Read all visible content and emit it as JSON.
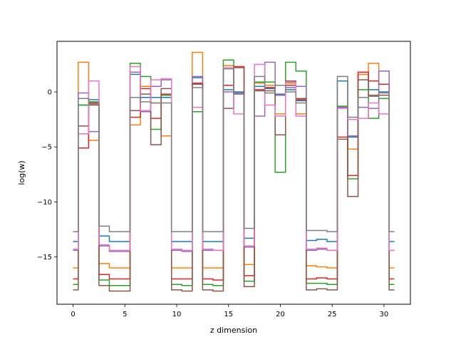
{
  "chart_data": {
    "type": "line",
    "style": "step",
    "title": "",
    "xlabel": "z dimension",
    "ylabel": "log(w)",
    "xlim": [
      -1.55,
      32.55
    ],
    "ylim": [
      -19.3,
      4.6
    ],
    "xticks": [
      0,
      5,
      10,
      15,
      20,
      25,
      30
    ],
    "yticks": [
      -15,
      -10,
      -5,
      0
    ],
    "grid": false,
    "legend": "none",
    "x": [
      0,
      1,
      2,
      3,
      4,
      5,
      6,
      7,
      8,
      9,
      10,
      11,
      12,
      13,
      14,
      15,
      16,
      17,
      18,
      19,
      20,
      21,
      22,
      23,
      24,
      25,
      26,
      27,
      28,
      29,
      30,
      31
    ],
    "series": [
      {
        "color": "#1f77b4",
        "values": [
          -13.6,
          -1.2,
          -0.7,
          -13.1,
          -13.6,
          -13.6,
          1.6,
          -0.5,
          -0.5,
          -0.5,
          -13.6,
          -13.6,
          1.3,
          -13.6,
          -13.6,
          0.2,
          0.0,
          -13.3,
          0.5,
          0.3,
          -0.2,
          0.2,
          -0.8,
          -13.5,
          -13.4,
          -13.6,
          1.0,
          -4.1,
          1.6,
          0.2,
          0.0,
          -13.6
        ]
      },
      {
        "color": "#ff7f0e",
        "values": [
          -16.0,
          2.7,
          -4.4,
          -15.6,
          -16.0,
          -16.0,
          -3.0,
          0.5,
          -1.0,
          -4.0,
          -16.0,
          -16.0,
          3.6,
          -16.0,
          -16.0,
          2.4,
          -0.2,
          -15.7,
          0.8,
          0.6,
          -2.0,
          0.8,
          -2.0,
          -15.8,
          -15.9,
          -16.0,
          -1.3,
          -5.2,
          1.6,
          2.6,
          0.7,
          -16.0
        ]
      },
      {
        "color": "#2ca02c",
        "values": [
          -17.5,
          -1.2,
          -0.9,
          -17.1,
          -17.6,
          -17.6,
          2.6,
          1.4,
          -3.4,
          -0.3,
          -17.5,
          -17.6,
          -1.8,
          -17.5,
          -17.6,
          2.9,
          -0.1,
          -17.2,
          0.9,
          0.9,
          -7.3,
          2.7,
          1.9,
          -17.4,
          -17.4,
          -17.5,
          -1.3,
          -7.9,
          0.2,
          -2.4,
          -0.6,
          -17.5
        ]
      },
      {
        "color": "#d62728",
        "values": [
          -17.0,
          -5.1,
          -1.0,
          -16.6,
          -17.0,
          -17.0,
          -2.3,
          0.3,
          -2.4,
          -0.2,
          -17.0,
          -17.0,
          0.8,
          -17.0,
          -17.1,
          0.6,
          2.3,
          -16.7,
          0.2,
          0.4,
          -0.3,
          0.6,
          -0.7,
          -17.0,
          -16.9,
          -17.0,
          -4.1,
          -7.6,
          1.8,
          1.0,
          0.7,
          -17.0
        ]
      },
      {
        "color": "#9467bd",
        "values": [
          -14.4,
          -0.1,
          -3.6,
          -14.0,
          -14.5,
          -14.5,
          1.8,
          -1.8,
          0.5,
          1.1,
          -14.4,
          -14.5,
          1.4,
          -14.4,
          -14.4,
          0.0,
          -0.1,
          -14.1,
          -2.2,
          2.7,
          -0.3,
          0.4,
          0.5,
          -14.4,
          -14.3,
          -14.4,
          -1.4,
          -4.0,
          -1.4,
          -1.5,
          1.9,
          -14.4
        ]
      },
      {
        "color": "#8c564b",
        "values": [
          -18.0,
          -3.1,
          -1.2,
          -17.6,
          -18.1,
          -18.1,
          -1.7,
          -0.2,
          -4.8,
          0.3,
          -18.0,
          -18.1,
          0.7,
          -18.0,
          -18.1,
          -1.5,
          2.2,
          -17.7,
          0.1,
          0.1,
          -3.9,
          1.0,
          -0.6,
          -18.0,
          -17.9,
          -18.0,
          -4.3,
          -9.5,
          1.1,
          -0.3,
          -0.3,
          -18.0
        ]
      },
      {
        "color": "#e377c2",
        "values": [
          -14.3,
          -3.8,
          1.0,
          -13.9,
          -14.4,
          -14.4,
          2.3,
          -1.7,
          1.1,
          1.2,
          -14.3,
          -14.4,
          -1.4,
          -14.3,
          -14.4,
          2.2,
          -2.0,
          -14.0,
          2.5,
          -1.2,
          -2.2,
          0.9,
          -2.2,
          -14.3,
          -14.2,
          -14.4,
          -1.5,
          -2.5,
          -2.4,
          -1.0,
          -2.0,
          -14.4
        ]
      },
      {
        "color": "#7f7f7f",
        "values": [
          -12.7,
          -0.6,
          -1.1,
          -12.2,
          -12.7,
          -12.7,
          -0.5,
          -0.9,
          -1.0,
          -1.0,
          -12.7,
          -12.7,
          0.4,
          -12.7,
          -12.7,
          2.1,
          -0.2,
          -12.4,
          1.4,
          -0.1,
          0.6,
          0.0,
          -1.0,
          -12.6,
          -12.6,
          -12.7,
          1.4,
          -2.3,
          -0.5,
          -0.4,
          -0.1,
          -12.7
        ]
      }
    ]
  }
}
